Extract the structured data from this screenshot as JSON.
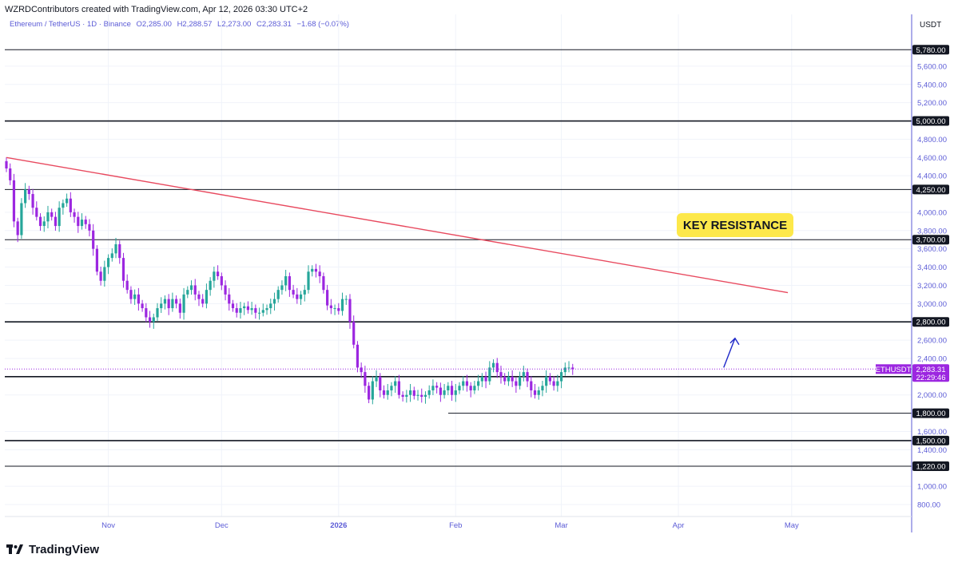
{
  "header": {
    "attribution": "WZRDContributors created with TradingView.com, Apr 12, 2026 03:30 UTC+2"
  },
  "symbol_info": {
    "name": "Ethereum / TetherUS · 1D · Binance",
    "open": "O2,285.00",
    "high": "H2,288.57",
    "low": "L2,273.00",
    "close": "C2,283.31",
    "change": "−1.68 (−0.07%)"
  },
  "axis": {
    "currency": "USDT"
  },
  "footer": {
    "brand": "TradingView"
  },
  "colors": {
    "up": "#26a69a",
    "down": "#9c27e0",
    "trendline": "#e84a5f",
    "label_bg": "#fde84a",
    "arrow": "#1d27c8",
    "last_price": "#9c27e0",
    "axis_text": "#5b5bd6"
  },
  "chart_data": {
    "type": "candlestick",
    "title": "",
    "x_ticks": [
      "Nov",
      "Dec",
      "2026",
      "Feb",
      "Mar",
      "Apr",
      "May"
    ],
    "y_ticks": [
      "5,600.00",
      "5,400.00",
      "5,200.00",
      "4,800.00",
      "4,600.00",
      "4,400.00",
      "4,000.00",
      "3,800.00",
      "3,600.00",
      "3,400.00",
      "3,200.00",
      "3,000.00",
      "2,600.00",
      "2,400.00",
      "2,000.00",
      "1,600.00",
      "1,400.00",
      "1,000.00",
      "800.00"
    ],
    "y_range": [
      700,
      6150
    ],
    "horizontal_levels": [
      {
        "value": 5780,
        "label": "5,780.00"
      },
      {
        "value": 5000,
        "label": "5,000.00"
      },
      {
        "value": 4250,
        "label": "4,250.00"
      },
      {
        "value": 3700,
        "label": "3,700.00"
      },
      {
        "value": 2800,
        "label": "2,800.00"
      },
      {
        "value": 2200,
        "label": "2,200.00"
      },
      {
        "value": 1800,
        "label": "1,800.00"
      },
      {
        "value": 1500,
        "label": "1,500.00"
      },
      {
        "value": 1220,
        "label": "1,220.00"
      }
    ],
    "last_price": {
      "symbol": "ETHUSDT",
      "value": "2,283.31",
      "countdown": "22:29:46"
    },
    "annotations": [
      {
        "text": "KEY RESISTANCE"
      }
    ],
    "trendline": {
      "from": [
        "2025-10-05",
        4600
      ],
      "to": [
        "2026-04-30",
        3120
      ]
    },
    "arrow": {
      "from": [
        "2026-04-13",
        2300
      ],
      "to": [
        "2026-04-16",
        2620
      ]
    },
    "candles_close": [
      4480,
      4350,
      3900,
      3750,
      4100,
      4250,
      4200,
      4050,
      3950,
      3850,
      3900,
      4000,
      3950,
      3850,
      4050,
      4100,
      4150,
      4000,
      3950,
      3850,
      3920,
      3870,
      3800,
      3600,
      3350,
      3250,
      3400,
      3500,
      3550,
      3650,
      3500,
      3250,
      3150,
      3050,
      3100,
      3000,
      2950,
      2850,
      2800,
      2850,
      2950,
      3000,
      3050,
      2950,
      3050,
      3000,
      2900,
      3100,
      3150,
      3200,
      3100,
      3050,
      3000,
      3150,
      3250,
      3350,
      3300,
      3200,
      3100,
      3000,
      2950,
      2900,
      2950,
      2970,
      2930,
      2950,
      2900,
      2900,
      2930,
      2950,
      3000,
      3050,
      3150,
      3200,
      3300,
      3150,
      3100,
      3050,
      3100,
      3150,
      3350,
      3380,
      3350,
      3300,
      3150,
      2980,
      2950,
      2950,
      2920,
      3050,
      3050,
      2800,
      2550,
      2300,
      2250,
      2100,
      1950,
      2150,
      2200,
      2050,
      2000,
      2050,
      2100,
      2150,
      2000,
      1980,
      2000,
      2050,
      1990,
      2000,
      1980,
      2000,
      2050,
      2100,
      2080,
      2000,
      2050,
      2100,
      2000,
      2050,
      2100,
      2150,
      2100,
      2050,
      2100,
      2150,
      2200,
      2150,
      2300,
      2350,
      2250,
      2200,
      2150,
      2200,
      2150,
      2100,
      2200,
      2250,
      2150,
      2050,
      2000,
      2050,
      2100,
      2200,
      2150,
      2100,
      2150,
      2250,
      2300,
      2300,
      2283
    ]
  }
}
